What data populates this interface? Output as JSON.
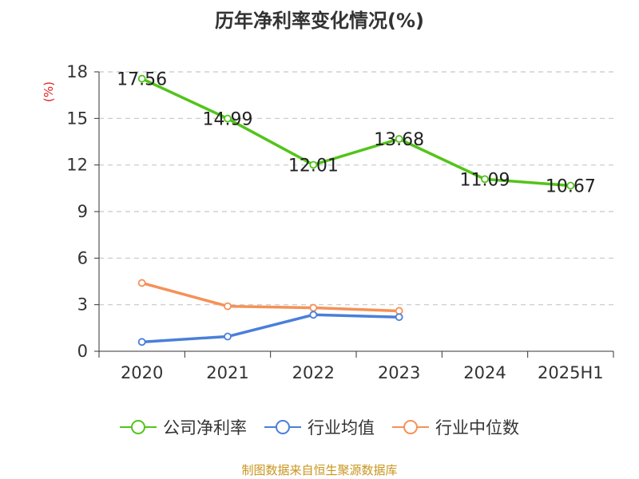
{
  "title": "历年净利率变化情况(%)",
  "source": "制图数据来自恒生聚源数据库",
  "chart_data": {
    "type": "line",
    "title": "历年净利率变化情况(%)",
    "ylabel": "(%)",
    "xlabel": "",
    "categories": [
      "2020",
      "2021",
      "2022",
      "2023",
      "2024",
      "2025H1"
    ],
    "ylim": [
      0,
      18
    ],
    "yticks": [
      0,
      3,
      6,
      9,
      12,
      15,
      18
    ],
    "grid": true,
    "legend_position": "bottom",
    "series": [
      {
        "name": "公司净利率",
        "color": "#52c41a",
        "values": [
          17.56,
          14.99,
          12.01,
          13.68,
          11.09,
          10.67
        ],
        "labels": [
          "17.56",
          "14.99",
          "12.01",
          "13.68",
          "11.09",
          "10.67"
        ]
      },
      {
        "name": "行业均值",
        "color": "#4a7fd9",
        "values": [
          0.6,
          0.95,
          2.35,
          2.2,
          null,
          null
        ]
      },
      {
        "name": "行业中位数",
        "color": "#f59157",
        "values": [
          4.4,
          2.9,
          2.8,
          2.6,
          null,
          null
        ]
      }
    ]
  }
}
